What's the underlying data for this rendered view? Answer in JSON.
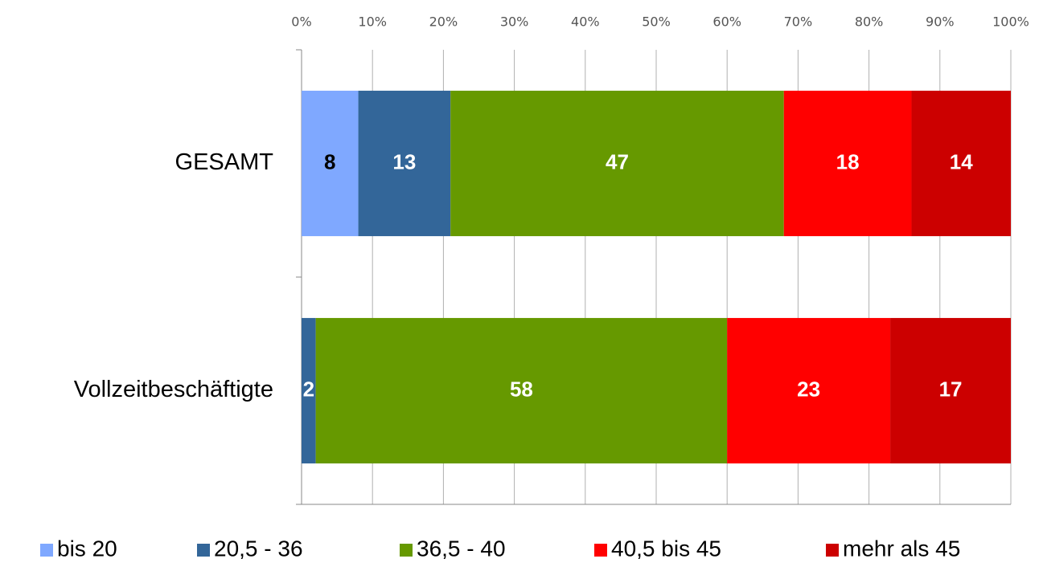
{
  "chart_data": {
    "type": "stacked_bar_horizontal",
    "categories": [
      "GESAMT",
      "Vollzeitbeschäftigte"
    ],
    "series": [
      {
        "name": "bis 20",
        "color": "#7fa8ff",
        "label_color": "#000000",
        "values": [
          8,
          null
        ]
      },
      {
        "name": "20,5 - 36",
        "color": "#336699",
        "label_color": "#ffffff",
        "values": [
          13,
          2
        ]
      },
      {
        "name": "36,5 - 40",
        "color": "#669900",
        "label_color": "#ffffff",
        "values": [
          47,
          58
        ]
      },
      {
        "name": "40,5 bis 45",
        "color": "#ff0000",
        "label_color": "#ffffff",
        "values": [
          18,
          23
        ]
      },
      {
        "name": "mehr als 45",
        "color": "#cc0000",
        "label_color": "#ffffff",
        "values": [
          14,
          17
        ]
      }
    ],
    "xlim": [
      0,
      100
    ],
    "xticks": [
      {
        "value": 0,
        "label": "0%"
      },
      {
        "value": 10,
        "label": "10%"
      },
      {
        "value": 20,
        "label": "20%"
      },
      {
        "value": 30,
        "label": "30%"
      },
      {
        "value": 40,
        "label": "40%"
      },
      {
        "value": 50,
        "label": "50%"
      },
      {
        "value": 60,
        "label": "60%"
      },
      {
        "value": 70,
        "label": "70%"
      },
      {
        "value": 80,
        "label": "80%"
      },
      {
        "value": 90,
        "label": "90%"
      },
      {
        "value": 100,
        "label": "100%"
      }
    ],
    "grid": true,
    "legend": "bottom"
  }
}
